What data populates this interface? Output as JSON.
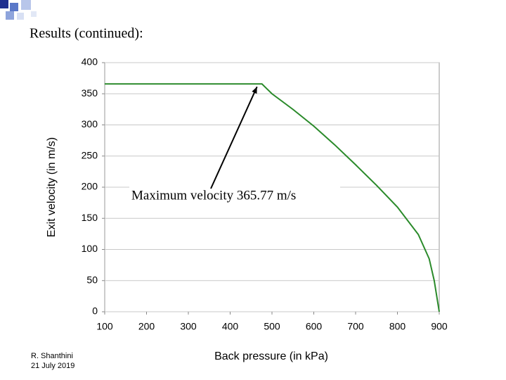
{
  "slide_title": "Results (continued):",
  "footer": {
    "author": "R. Shanthini",
    "date": "21 July 2019"
  },
  "chart_data": {
    "type": "line",
    "x": [
      100,
      476,
      500,
      550,
      600,
      650,
      700,
      750,
      800,
      850,
      876,
      888,
      900
    ],
    "values": [
      365.77,
      365.77,
      350,
      325,
      298,
      268,
      236,
      203,
      168,
      124,
      85,
      50,
      0
    ],
    "color": "#2a8a2a",
    "xlim": [
      100,
      900
    ],
    "xticks": [
      100,
      200,
      300,
      400,
      500,
      600,
      700,
      800,
      900
    ],
    "ylim": [
      0,
      400
    ],
    "yticks": [
      0,
      50,
      100,
      150,
      200,
      250,
      300,
      350,
      400
    ],
    "grid": true,
    "xlabel": "Back pressure (in kPa)",
    "ylabel": "Exit velocity (in m/s)",
    "annotation": "Maximum velocity 365.77 m/s"
  }
}
